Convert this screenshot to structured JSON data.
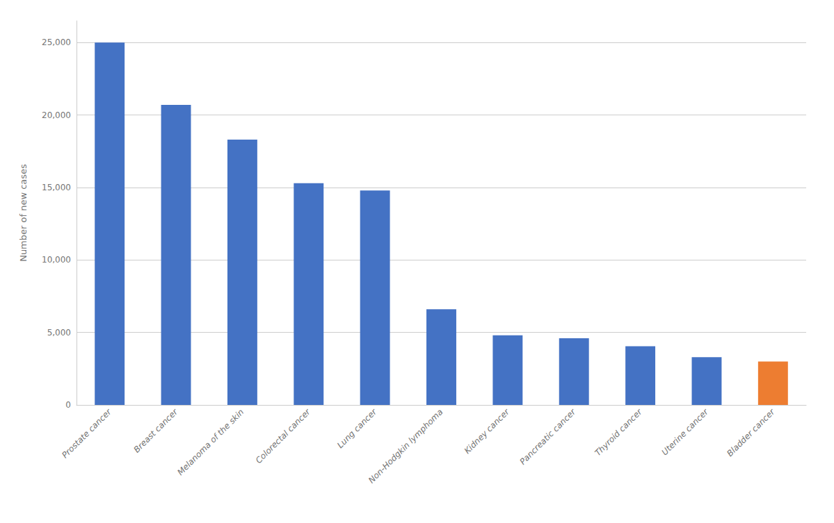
{
  "chart_data": {
    "type": "bar",
    "categories": [
      "Prostate cancer",
      "Breast cancer",
      "Melanoma of the skin",
      "Colorectal cancer",
      "Lung cancer",
      "Non-Hodgkin lymphoma",
      "Kidney cancer",
      "Pancreatic cancer",
      "Thyroid cancer",
      "Uterine cancer",
      "Bladder cancer"
    ],
    "values": [
      25000,
      20700,
      18300,
      15300,
      14800,
      6600,
      4800,
      4600,
      4050,
      3300,
      3000
    ],
    "colors": [
      "#4472C4",
      "#4472C4",
      "#4472C4",
      "#4472C4",
      "#4472C4",
      "#4472C4",
      "#4472C4",
      "#4472C4",
      "#4472C4",
      "#4472C4",
      "#ED7D31"
    ],
    "ylabel": "Number of new cases",
    "ylim": [
      0,
      26500
    ],
    "yticks": [
      0,
      {
        "value": 5000,
        "label": "5,000"
      },
      {
        "value": 10000,
        "label": "10,000"
      },
      {
        "value": 15000,
        "label": "15,000"
      },
      {
        "value": 20000,
        "label": "20,000"
      },
      {
        "value": 25000,
        "label": "25,000"
      }
    ],
    "grid": true
  }
}
